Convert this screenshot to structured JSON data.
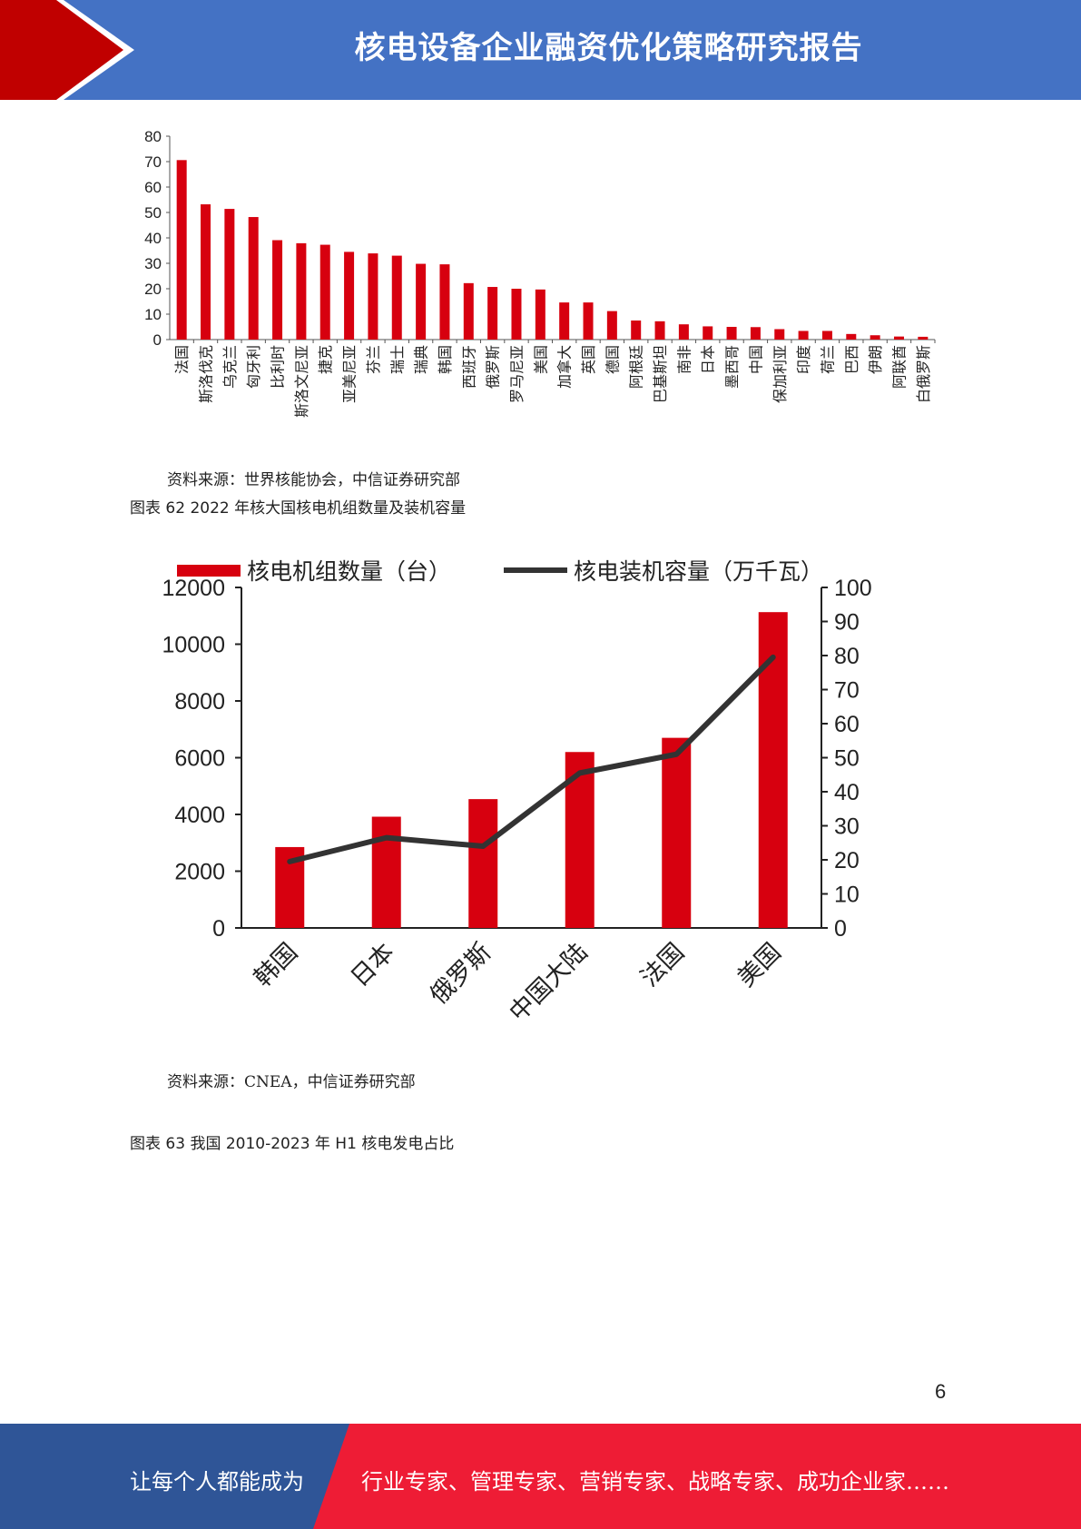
{
  "header": {
    "title": "核电设备企业融资优化策略研究报告"
  },
  "chart1": {
    "chart_data": {
      "type": "bar",
      "categories": [
        "法国",
        "斯洛伐克",
        "乌克兰",
        "匈牙利",
        "比利时",
        "斯洛文尼亚",
        "捷克",
        "亚美尼亚",
        "芬兰",
        "瑞士",
        "瑞典",
        "韩国",
        "西班牙",
        "俄罗斯",
        "罗马尼亚",
        "美国",
        "加拿大",
        "英国",
        "德国",
        "阿根廷",
        "巴基斯坦",
        "南非",
        "日本",
        "墨西哥",
        "中国",
        "保加利亚",
        "印度",
        "荷兰",
        "巴西",
        "伊朗",
        "阿联酋",
        "白俄罗斯"
      ],
      "values": [
        70.6,
        53.2,
        51.4,
        48.2,
        39.1,
        37.9,
        37.3,
        34.5,
        33.9,
        33.0,
        29.8,
        29.6,
        22.2,
        20.7,
        20.0,
        19.7,
        14.6,
        14.6,
        11.2,
        7.5,
        7.2,
        6.0,
        5.2,
        5.0,
        4.9,
        4.1,
        3.4,
        3.4,
        2.2,
        1.7,
        1.2,
        1.1
      ],
      "ylim": [
        0,
        80
      ],
      "yticks": [
        0,
        10,
        20,
        30,
        40,
        50,
        60,
        70,
        80
      ],
      "color": "#d7000f"
    },
    "source": "资料来源：世界核能协会，中信证券研究部"
  },
  "chart2": {
    "caption": "图表 62 2022 年核大国核电机组数量及装机容量",
    "chart_data": {
      "type": "bar",
      "categories": [
        "韩国",
        "日本",
        "俄罗斯",
        "中国大陆",
        "法国",
        "美国"
      ],
      "series": [
        {
          "name": "核电机组数量（台）",
          "type": "bar",
          "axis": "left",
          "color": "#d7000f",
          "values": [
            2850,
            3920,
            4540,
            6200,
            6700,
            11130
          ]
        },
        {
          "name": "核电装机容量（万千瓦）",
          "type": "line",
          "axis": "right",
          "color": "#333333",
          "values": [
            19.5,
            26.5,
            24.0,
            45.5,
            51.0,
            79.5
          ]
        }
      ],
      "ylim_left": [
        0,
        12000
      ],
      "yticks_left": [
        0,
        2000,
        4000,
        6000,
        8000,
        10000,
        12000
      ],
      "ylim_right": [
        0,
        100
      ],
      "yticks_right": [
        0,
        10,
        20,
        30,
        40,
        50,
        60,
        70,
        80,
        90,
        100
      ]
    },
    "source": "资料来源：CNEA，中信证券研究部"
  },
  "caption63": "图表 63  我国 2010-2023 年 H1 核电发电占比",
  "page_number": "6",
  "footer": {
    "left": "让每个人都能成为",
    "right": "行业专家、管理专家、营销专家、战略专家、成功企业家……"
  }
}
